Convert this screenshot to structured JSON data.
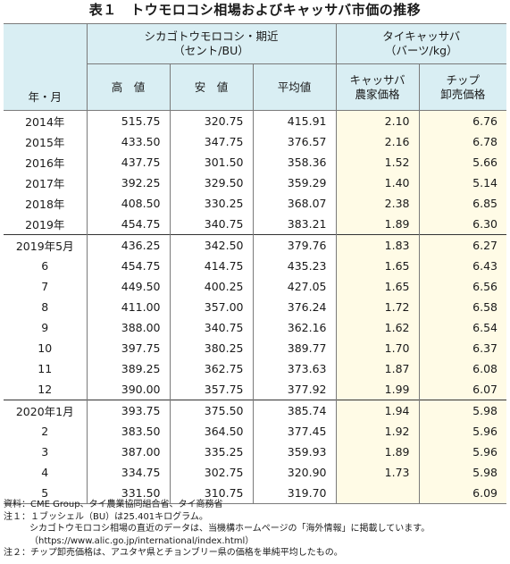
{
  "title": "表１　トウモロコシ相場およびキャッサバ市価の推移",
  "header": {
    "period": "年・月",
    "corn_group_line1": "シカゴトウモロコシ・期近",
    "corn_group_line2": "（セント/BU）",
    "high": "高　値",
    "low": "安　値",
    "avg": "平均値",
    "cassava_group_line1": "タイキャッサバ",
    "cassava_group_line2": "（バーツ/kg）",
    "farm_line1": "キャッサバ",
    "farm_line2": "農家価格",
    "chip_line1": "チップ",
    "chip_line2": "卸売価格"
  },
  "groups": [
    {
      "rows": [
        {
          "period": "2014年",
          "high": "515.75",
          "low": "320.75",
          "avg": "415.91",
          "farm": "2.10",
          "chip": "6.76"
        },
        {
          "period": "2015年",
          "high": "433.50",
          "low": "347.75",
          "avg": "376.57",
          "farm": "2.16",
          "chip": "6.78"
        },
        {
          "period": "2016年",
          "high": "437.75",
          "low": "301.50",
          "avg": "358.36",
          "farm": "1.52",
          "chip": "5.66"
        },
        {
          "period": "2017年",
          "high": "392.25",
          "low": "329.50",
          "avg": "359.29",
          "farm": "1.40",
          "chip": "5.14"
        },
        {
          "period": "2018年",
          "high": "408.50",
          "low": "330.25",
          "avg": "368.07",
          "farm": "2.38",
          "chip": "6.85"
        },
        {
          "period": "2019年",
          "high": "454.75",
          "low": "340.75",
          "avg": "383.21",
          "farm": "1.89",
          "chip": "6.30"
        }
      ]
    },
    {
      "rows": [
        {
          "period": "2019年5月",
          "high": "436.25",
          "low": "342.50",
          "avg": "379.76",
          "farm": "1.83",
          "chip": "6.27"
        },
        {
          "period": "6",
          "high": "454.75",
          "low": "414.75",
          "avg": "435.23",
          "farm": "1.65",
          "chip": "6.43"
        },
        {
          "period": "7",
          "high": "449.50",
          "low": "400.25",
          "avg": "427.05",
          "farm": "1.65",
          "chip": "6.56"
        },
        {
          "period": "8",
          "high": "411.00",
          "low": "357.00",
          "avg": "376.24",
          "farm": "1.72",
          "chip": "6.58"
        },
        {
          "period": "9",
          "high": "388.00",
          "low": "340.75",
          "avg": "362.16",
          "farm": "1.62",
          "chip": "6.54"
        },
        {
          "period": "10",
          "high": "397.75",
          "low": "380.25",
          "avg": "389.77",
          "farm": "1.70",
          "chip": "6.37"
        },
        {
          "period": "11",
          "high": "389.25",
          "low": "362.75",
          "avg": "373.63",
          "farm": "1.87",
          "chip": "6.08"
        },
        {
          "period": "12",
          "high": "390.00",
          "low": "357.75",
          "avg": "377.92",
          "farm": "1.99",
          "chip": "6.07"
        }
      ]
    },
    {
      "rows": [
        {
          "period": "2020年1月",
          "high": "393.75",
          "low": "375.50",
          "avg": "385.74",
          "farm": "1.94",
          "chip": "5.98"
        },
        {
          "period": "2",
          "high": "383.50",
          "low": "364.50",
          "avg": "377.45",
          "farm": "1.92",
          "chip": "5.96"
        },
        {
          "period": "3",
          "high": "387.00",
          "low": "335.25",
          "avg": "359.93",
          "farm": "1.89",
          "chip": "5.96"
        },
        {
          "period": "4",
          "high": "334.75",
          "low": "302.75",
          "avg": "320.90",
          "farm": "1.73",
          "chip": "5.98"
        },
        {
          "period": "5",
          "high": "331.50",
          "low": "310.75",
          "avg": "319.70",
          "farm": "",
          "chip": "6.09"
        }
      ]
    }
  ],
  "notes": {
    "source": "資料：CME Group、タイ農業協同組合省、タイ商務省",
    "note1": "注１：１ブッシェル（BU）は25.401キログラム。",
    "note1_paren_line1": "シカゴトウモロコシ相場の直近のデータは、当機構ホームページの「海外情報」に掲載しています。",
    "note1_paren_line2": "（https://www.alic.go.jp/international/index.html）",
    "note2": "注２：チップ卸売価格は、アユタヤ県とチョンブリー県の価格を単純平均したもの。"
  },
  "colors": {
    "header_bg": "#d9eef3",
    "cassava_bg": "#fffbe6",
    "border": "#7a7a7a"
  }
}
